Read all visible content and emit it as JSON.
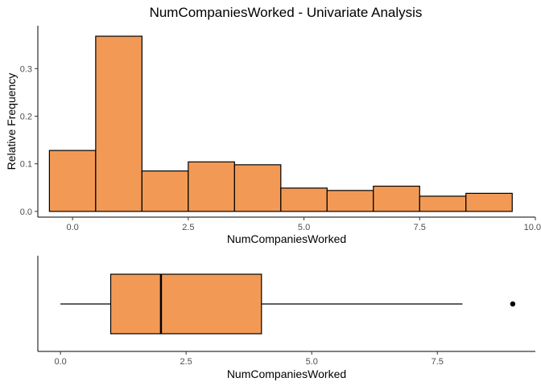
{
  "chart_data": [
    {
      "type": "bar",
      "subtype": "histogram",
      "title": "NumCompaniesWorked - Univariate Analysis",
      "xlabel": "NumCompaniesWorked",
      "ylabel": "Relative Frequency",
      "bin_width": 1,
      "bin_centers": [
        0,
        1,
        2,
        3,
        4,
        5,
        6,
        7,
        8,
        9
      ],
      "values": [
        0.128,
        0.368,
        0.085,
        0.104,
        0.098,
        0.049,
        0.044,
        0.053,
        0.032,
        0.038
      ],
      "xlim": [
        -0.75,
        10.0
      ],
      "ylim": [
        -0.012,
        0.39
      ],
      "x_ticks": [
        0,
        2.5,
        5,
        7.5,
        10
      ],
      "x_tick_labels": [
        "0.0",
        "2.5",
        "5.0",
        "7.5",
        "10.0"
      ],
      "y_ticks": [
        0,
        0.1,
        0.2,
        0.3
      ],
      "y_tick_labels": [
        "0.0",
        "0.1",
        "0.2",
        "0.3"
      ],
      "grid": false,
      "color": "#F29A55"
    },
    {
      "type": "box",
      "xlabel": "NumCompaniesWorked",
      "min": 0,
      "q1": 1,
      "median": 2,
      "q3": 4,
      "whisker_high": 8,
      "outliers": [
        9
      ],
      "xlim": [
        -0.45,
        9.45
      ],
      "x_ticks": [
        0,
        2.5,
        5,
        7.5
      ],
      "x_tick_labels": [
        "0.0",
        "2.5",
        "5.0",
        "7.5"
      ],
      "grid": false,
      "color": "#F29A55"
    }
  ]
}
